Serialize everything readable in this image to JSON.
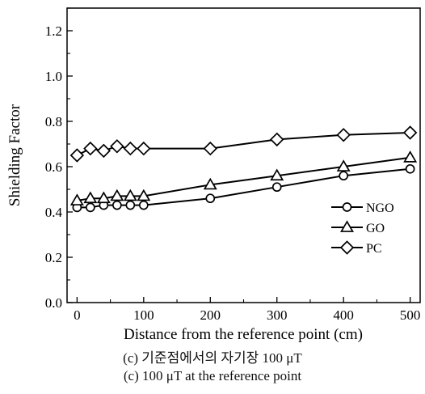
{
  "chart_data": {
    "type": "line",
    "xlabel": "Distance from the reference point (cm)",
    "ylabel": "Shielding Factor",
    "xlim": [
      -15,
      515
    ],
    "ylim": [
      0.0,
      1.3
    ],
    "xticks": [
      0,
      100,
      200,
      300,
      400,
      500
    ],
    "yticks": [
      0.0,
      0.2,
      0.4,
      0.6,
      0.8,
      1.0,
      1.2
    ],
    "xtick_labels": [
      "0",
      "100",
      "200",
      "300",
      "400",
      "500"
    ],
    "ytick_labels": [
      "0.0",
      "0.2",
      "0.4",
      "0.6",
      "0.8",
      "1.0",
      "1.2"
    ],
    "grid": false,
    "legend_position": "bottom-right",
    "series": [
      {
        "name": "NGO",
        "marker": "circle",
        "x": [
          0,
          20,
          40,
          60,
          80,
          100,
          200,
          300,
          400,
          500
        ],
        "y": [
          0.42,
          0.42,
          0.43,
          0.43,
          0.43,
          0.43,
          0.46,
          0.51,
          0.56,
          0.59
        ]
      },
      {
        "name": "GO",
        "marker": "triangle",
        "x": [
          0,
          20,
          40,
          60,
          80,
          100,
          200,
          300,
          400,
          500
        ],
        "y": [
          0.45,
          0.46,
          0.46,
          0.47,
          0.47,
          0.47,
          0.52,
          0.56,
          0.6,
          0.64
        ]
      },
      {
        "name": "PC",
        "marker": "diamond",
        "x": [
          0,
          20,
          40,
          60,
          80,
          100,
          200,
          300,
          400,
          500
        ],
        "y": [
          0.65,
          0.68,
          0.67,
          0.69,
          0.68,
          0.68,
          0.68,
          0.72,
          0.74,
          0.75
        ]
      }
    ]
  },
  "captions": {
    "korean": "(c) 기준점에서의 자기장 100  μT",
    "english": "(c) 100  μT at the reference point"
  }
}
